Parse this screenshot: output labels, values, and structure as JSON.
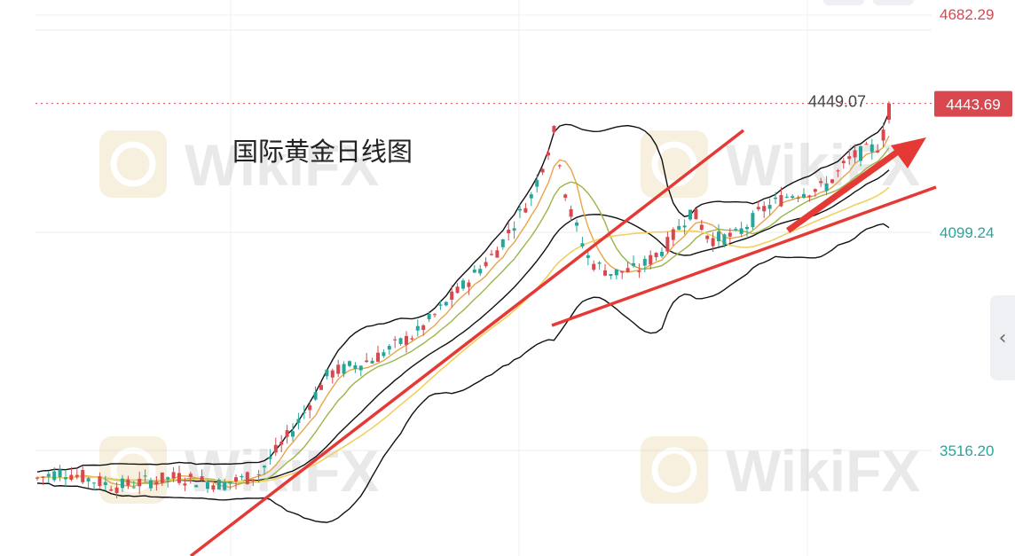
{
  "chart_data": {
    "type": "candlestick",
    "title": "国际黄金日线图",
    "price_labels": [
      {
        "text": "4682.29",
        "value": 4682.29,
        "color": "#d9474f"
      },
      {
        "text": "4099.24",
        "value": 4099.24,
        "color": "#26a69a"
      },
      {
        "text": "3516.20",
        "value": 3516.2,
        "color": "#26a69a"
      }
    ],
    "current_price": {
      "text": "4443.69",
      "value": 4443.69
    },
    "high_marker": {
      "text": "4449.07",
      "value": 4449.07
    },
    "ylim": [
      3250,
      4740
    ],
    "grid": true,
    "watermark": "WikiFX",
    "colors": {
      "up": "#d9474f",
      "down": "#26a69a",
      "bollinger": "#111111",
      "ma_short": "#e8a548",
      "ma_mid": "#9ab548",
      "ma_long": "#f2d060",
      "trendline": "#e53935",
      "current_badge": "#d9474f"
    }
  },
  "ui": {
    "side_handle_icon": "chevron-left-icon"
  }
}
